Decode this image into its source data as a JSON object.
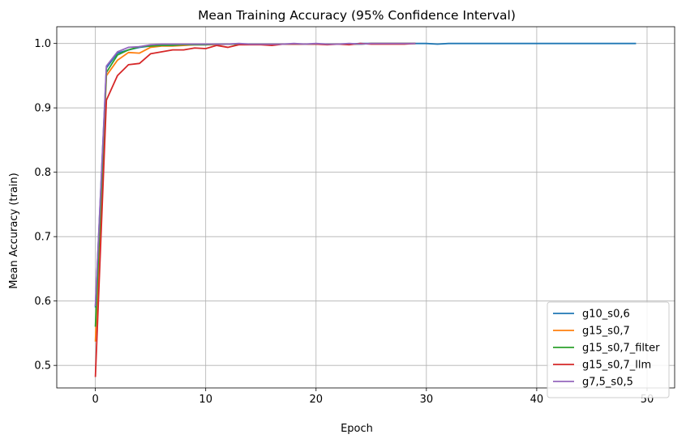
{
  "chart_data": {
    "type": "line",
    "title": "Mean Training Accuracy (95% Confidence Interval)",
    "xlabel": "Epoch",
    "ylabel": "Mean Accuracy (train)",
    "xlim": [
      -3.5,
      52.5
    ],
    "ylim": [
      0.465,
      1.026
    ],
    "xticks": [
      0,
      10,
      20,
      30,
      40,
      50
    ],
    "yticks": [
      0.5,
      0.6,
      0.7,
      0.8,
      0.9,
      1.0
    ],
    "xtick_labels": [
      "0",
      "10",
      "20",
      "30",
      "40",
      "50"
    ],
    "ytick_labels": [
      "0.5",
      "0.6",
      "0.7",
      "0.8",
      "0.9",
      "1.0"
    ],
    "grid": true,
    "legend_position": "bottom-right",
    "series": [
      {
        "name": "g10_s0,6",
        "color": "#1f77b4",
        "x": [
          0,
          1,
          2,
          3,
          4,
          5,
          6,
          7,
          8,
          9,
          10,
          11,
          12,
          13,
          14,
          15,
          16,
          17,
          18,
          19,
          20,
          21,
          22,
          23,
          24,
          25,
          26,
          27,
          28,
          29,
          30,
          31,
          32,
          33,
          34,
          35,
          36,
          37,
          38,
          39,
          40,
          41,
          42,
          43,
          44,
          45,
          46,
          47,
          48,
          49
        ],
        "values": [
          0.59,
          0.962,
          0.985,
          0.99,
          0.994,
          0.996,
          0.997,
          0.997,
          0.998,
          0.998,
          0.998,
          0.999,
          0.999,
          0.999,
          0.999,
          0.999,
          0.999,
          0.999,
          0.999,
          0.999,
          0.999,
          0.999,
          0.999,
          0.999,
          1.0,
          1.0,
          1.0,
          1.0,
          1.0,
          1.0,
          1.0,
          0.999,
          1.0,
          1.0,
          1.0,
          1.0,
          1.0,
          1.0,
          1.0,
          1.0,
          1.0,
          1.0,
          1.0,
          1.0,
          1.0,
          1.0,
          1.0,
          1.0,
          1.0,
          1.0
        ]
      },
      {
        "name": "g15_s0,7",
        "color": "#ff7f0e",
        "x": [
          0,
          1,
          2,
          3,
          4,
          5,
          6,
          7,
          8,
          9,
          10,
          11,
          12,
          13,
          14,
          15,
          16,
          17,
          18,
          19,
          20,
          21,
          22,
          23,
          24,
          25,
          26,
          27,
          28,
          29
        ],
        "values": [
          0.537,
          0.95,
          0.974,
          0.986,
          0.985,
          0.994,
          0.996,
          0.996,
          0.997,
          0.998,
          0.998,
          0.998,
          0.999,
          0.999,
          0.999,
          0.999,
          0.999,
          0.999,
          0.999,
          0.999,
          0.999,
          0.999,
          0.999,
          0.999,
          0.999,
          1.0,
          1.0,
          1.0,
          1.0,
          1.0
        ]
      },
      {
        "name": "g15_s0,7_filter",
        "color": "#2ca02c",
        "x": [
          0,
          1,
          2,
          3,
          4,
          5,
          6,
          7,
          8,
          9,
          10,
          11,
          12,
          13,
          14,
          15,
          16,
          17,
          18,
          19,
          20,
          21,
          22,
          23,
          24,
          25,
          26,
          27,
          28,
          29
        ],
        "values": [
          0.56,
          0.955,
          0.982,
          0.99,
          0.995,
          0.996,
          0.997,
          0.997,
          0.998,
          0.998,
          0.998,
          0.999,
          0.999,
          0.999,
          0.999,
          0.999,
          0.999,
          0.999,
          0.999,
          0.999,
          0.999,
          0.999,
          0.999,
          0.999,
          0.999,
          1.0,
          1.0,
          1.0,
          1.0,
          1.0
        ]
      },
      {
        "name": "g15_s0,7_llm",
        "color": "#d62728",
        "x": [
          0,
          1,
          2,
          3,
          4,
          5,
          6,
          7,
          8,
          9,
          10,
          11,
          12,
          13,
          14,
          15,
          16,
          17,
          18,
          19,
          20,
          21,
          22,
          23,
          24,
          25,
          26,
          27,
          28,
          29
        ],
        "values": [
          0.482,
          0.912,
          0.95,
          0.967,
          0.969,
          0.984,
          0.987,
          0.99,
          0.99,
          0.993,
          0.992,
          0.997,
          0.994,
          0.998,
          0.998,
          0.998,
          0.997,
          0.999,
          0.999,
          0.999,
          0.999,
          0.998,
          0.999,
          0.998,
          1.0,
          0.999,
          0.999,
          0.999,
          0.999,
          1.0
        ]
      },
      {
        "name": "g7,5_s0,5",
        "color": "#9467bd",
        "x": [
          0,
          1,
          2,
          3,
          4,
          5,
          6,
          7,
          8,
          9,
          10,
          11,
          12,
          13,
          14,
          15,
          16,
          17,
          18,
          19,
          20,
          21,
          22,
          23,
          24,
          25,
          26,
          27,
          28,
          29
        ],
        "values": [
          0.592,
          0.965,
          0.987,
          0.994,
          0.995,
          0.998,
          0.999,
          0.999,
          0.999,
          0.999,
          0.999,
          0.999,
          0.999,
          1.0,
          0.999,
          0.999,
          0.999,
          0.999,
          1.0,
          0.999,
          1.0,
          0.999,
          0.999,
          1.0,
          0.999,
          1.0,
          1.0,
          1.0,
          1.0,
          1.0
        ]
      }
    ]
  }
}
